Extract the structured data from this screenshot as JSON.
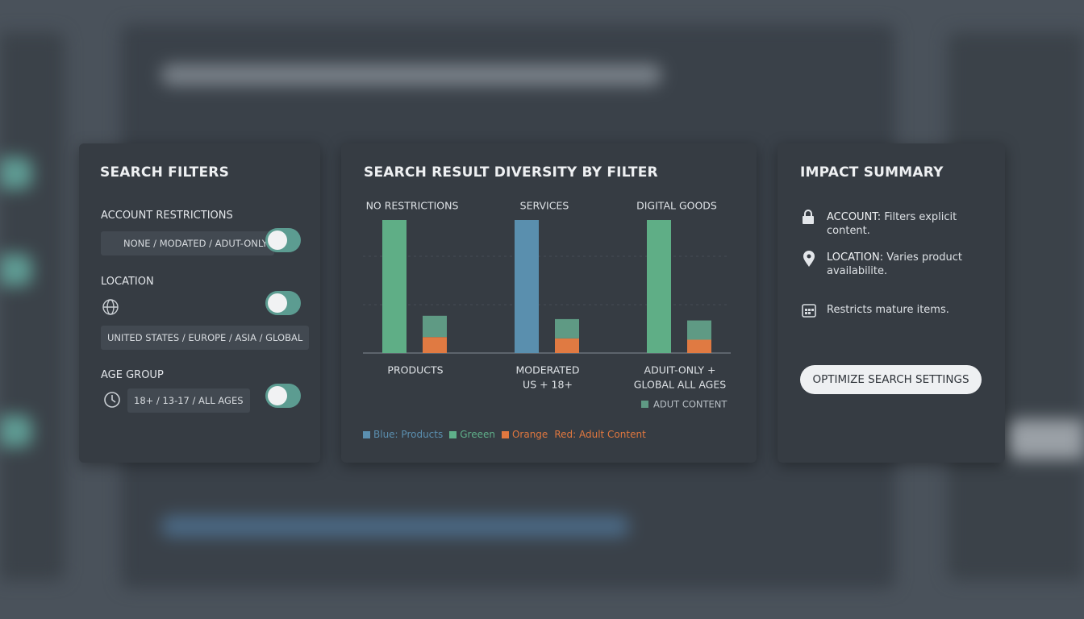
{
  "filters": {
    "title": "SEARCH FILTERS",
    "items": [
      {
        "label": "ACCOUNT RESTRICTIONS",
        "value": "NONE / MODATED / ADUT-ONLY"
      },
      {
        "label": "LOCATION",
        "value": "UNITED STATES / EUROPE / ASIA / GLOBAL"
      },
      {
        "label": "AGE GROUP",
        "value": "18+ / 13-17 / ALL AGES"
      }
    ]
  },
  "chart_data": {
    "type": "bar",
    "title": "SEARCH RESULT DIVERSITY BY FILTER",
    "top_labels": [
      "NO RESTRICTIONS",
      "SERVICES",
      "DIGITAL GOODS"
    ],
    "categories": [
      [
        "PRODUCTS"
      ],
      [
        "MODERATED",
        "US + 18+"
      ],
      [
        "ADUIT-ONLY +",
        "GLOBAL ALL AGES"
      ]
    ],
    "main": {
      "values": [
        100,
        100,
        100
      ],
      "colors": [
        "#5fae86",
        "#5a8fae",
        "#5fae86"
      ]
    },
    "stack": [
      {
        "color": "#e07a42",
        "values": [
          12,
          11,
          10
        ]
      },
      {
        "name": "ADUT CONTENT",
        "color": "#5f9a84",
        "values": [
          16,
          14.5,
          14.5
        ]
      }
    ],
    "legend_texts": [
      {
        "text": "Blue: Products",
        "color": "#5b8fb0",
        "swatch": true
      },
      {
        "text": "Greeen",
        "color": "#5fb08a",
        "swatch": true
      },
      {
        "text": "Orange",
        "color": "#e0773f",
        "swatch": true
      },
      {
        "text": "Red: Adult Content",
        "color": "#e0773f",
        "swatch": false
      }
    ]
  },
  "summary": {
    "title": "IMPACT SUMMARY",
    "items": [
      {
        "bold": "ACCOUNT:",
        "text": "Filters explicit content."
      },
      {
        "bold": "LOCATION:",
        "text": "Varies product availabilite."
      },
      {
        "text": "Restricts mature items."
      }
    ],
    "button": "OPTIMIZE SEARCH SETTINGS"
  }
}
